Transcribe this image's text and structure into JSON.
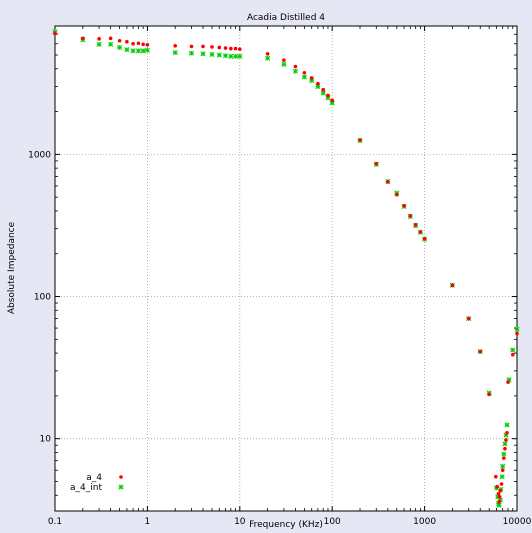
{
  "chart_data": {
    "type": "scatter",
    "title": "Acadia Distilled 4",
    "xlabel": "Frequency (KHz)",
    "ylabel": "Absolute Impedance",
    "x_scale": "log",
    "y_scale": "log",
    "xlim": [
      0.1,
      10000
    ],
    "ylim": [
      3.1,
      8000
    ],
    "x_ticks": [
      {
        "value": 0.1,
        "label": "0.1"
      },
      {
        "value": 1,
        "label": "1"
      },
      {
        "value": 10,
        "label": "10"
      },
      {
        "value": 100,
        "label": "100"
      },
      {
        "value": 1000,
        "label": "1000"
      },
      {
        "value": 10000,
        "label": "10000"
      }
    ],
    "y_ticks": [
      {
        "value": 10,
        "label": "10"
      },
      {
        "value": 100,
        "label": "100"
      },
      {
        "value": 1000,
        "label": "1000"
      }
    ],
    "grid": true,
    "legend_position": "bottom-left",
    "series": [
      {
        "name": "a_4",
        "color": "#ff0000",
        "marker": "dot",
        "points": [
          [
            0.1,
            7100
          ],
          [
            0.2,
            6550
          ],
          [
            0.3,
            6500
          ],
          [
            0.4,
            6550
          ],
          [
            0.5,
            6300
          ],
          [
            0.6,
            6200
          ],
          [
            0.7,
            6000
          ],
          [
            0.8,
            6050
          ],
          [
            0.9,
            5950
          ],
          [
            1.0,
            5900
          ],
          [
            2,
            5800
          ],
          [
            3,
            5750
          ],
          [
            4,
            5750
          ],
          [
            5,
            5700
          ],
          [
            6,
            5650
          ],
          [
            7,
            5600
          ],
          [
            8,
            5550
          ],
          [
            9,
            5550
          ],
          [
            10,
            5500
          ],
          [
            20,
            5100
          ],
          [
            30,
            4600
          ],
          [
            40,
            4150
          ],
          [
            50,
            3750
          ],
          [
            60,
            3450
          ],
          [
            70,
            3150
          ],
          [
            80,
            2850
          ],
          [
            90,
            2600
          ],
          [
            100,
            2400
          ],
          [
            200,
            1260
          ],
          [
            300,
            860
          ],
          [
            400,
            640
          ],
          [
            500,
            520
          ],
          [
            600,
            435
          ],
          [
            700,
            370
          ],
          [
            800,
            320
          ],
          [
            900,
            285
          ],
          [
            1000,
            255
          ],
          [
            2000,
            120
          ],
          [
            3000,
            70
          ],
          [
            4000,
            41
          ],
          [
            5000,
            20.5
          ],
          [
            5900,
            5.4
          ],
          [
            6100,
            4.6
          ],
          [
            6300,
            4.1
          ],
          [
            6400,
            3.6
          ],
          [
            6500,
            3.9
          ],
          [
            6600,
            4.3
          ],
          [
            6800,
            4.8
          ],
          [
            7000,
            6.0
          ],
          [
            7200,
            7.3
          ],
          [
            7400,
            8.5
          ],
          [
            7600,
            9.8
          ],
          [
            7800,
            11.0
          ],
          [
            8000,
            25
          ],
          [
            9000,
            39
          ],
          [
            10000,
            55
          ]
        ]
      },
      {
        "name": "a_4_int",
        "color": "#00cc00",
        "marker": "star",
        "points": [
          [
            0.1,
            7300
          ],
          [
            0.2,
            6400
          ],
          [
            0.3,
            5950
          ],
          [
            0.4,
            5950
          ],
          [
            0.5,
            5650
          ],
          [
            0.6,
            5450
          ],
          [
            0.7,
            5350
          ],
          [
            0.8,
            5350
          ],
          [
            0.9,
            5350
          ],
          [
            1.0,
            5400
          ],
          [
            2,
            5200
          ],
          [
            3,
            5150
          ],
          [
            4,
            5100
          ],
          [
            5,
            5050
          ],
          [
            6,
            5000
          ],
          [
            7,
            4950
          ],
          [
            8,
            4900
          ],
          [
            9,
            4900
          ],
          [
            10,
            4900
          ],
          [
            20,
            4750
          ],
          [
            30,
            4300
          ],
          [
            40,
            3850
          ],
          [
            50,
            3500
          ],
          [
            60,
            3300
          ],
          [
            70,
            3000
          ],
          [
            80,
            2700
          ],
          [
            90,
            2500
          ],
          [
            100,
            2300
          ],
          [
            200,
            1250
          ],
          [
            300,
            850
          ],
          [
            400,
            645
          ],
          [
            500,
            535
          ],
          [
            600,
            430
          ],
          [
            700,
            365
          ],
          [
            800,
            315
          ],
          [
            900,
            283
          ],
          [
            1000,
            253
          ],
          [
            2000,
            120
          ],
          [
            3000,
            70
          ],
          [
            4000,
            41
          ],
          [
            5000,
            21
          ],
          [
            6000,
            4.5
          ],
          [
            6200,
            3.9
          ],
          [
            6300,
            3.5
          ],
          [
            6400,
            3.4
          ],
          [
            6600,
            3.7
          ],
          [
            6700,
            4.4
          ],
          [
            6900,
            5.4
          ],
          [
            7000,
            6.4
          ],
          [
            7200,
            7.8
          ],
          [
            7400,
            9.2
          ],
          [
            7600,
            10.6
          ],
          [
            7800,
            12.5
          ],
          [
            8200,
            26
          ],
          [
            9000,
            42
          ],
          [
            10000,
            59
          ]
        ]
      }
    ]
  }
}
